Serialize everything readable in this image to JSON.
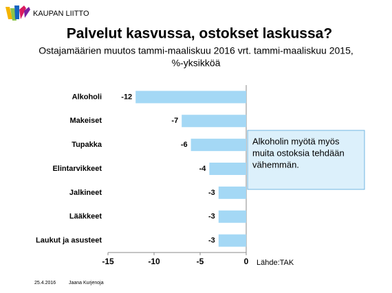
{
  "logo_text": "KAUPAN LIITTO",
  "footer": {
    "date": "25.4.2016",
    "author": "Jaana Kurjenoja"
  },
  "chart_data": {
    "type": "bar",
    "orientation": "horizontal",
    "title": "Palvelut kasvussa, ostokset laskussa?",
    "subtitle": [
      "Ostajamäärien muutos tammi-maaliskuu 2016 vrt. tammi-maaliskuu 2015,",
      "%-yksikköä"
    ],
    "categories": [
      "Alkoholi",
      "Makeiset",
      "Tupakka",
      "Elintarvikkeet",
      "Jalkineet",
      "Lääkkeet",
      "Laukut ja asusteet"
    ],
    "values": [
      -12,
      -7,
      -6,
      -4,
      -3,
      -3,
      -3
    ],
    "color": "#a4d8f5",
    "xlim": [
      -15,
      0
    ],
    "xticks": [
      -15,
      -10,
      -5,
      0
    ],
    "annotation": [
      "Alkoholin myötä myös",
      "muita ostoksia tehdään",
      "vähemmän."
    ],
    "source": "Lähde:TAK"
  }
}
